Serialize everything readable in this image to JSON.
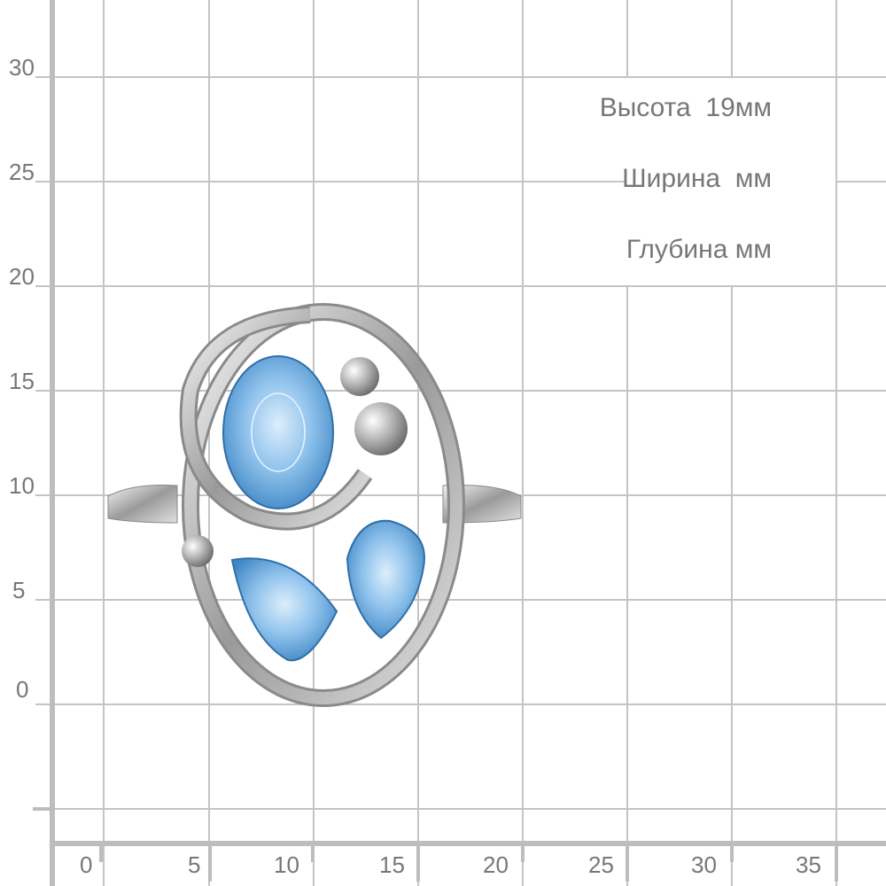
{
  "y_axis": {
    "ticks": [
      "30",
      "25",
      "20",
      "15",
      "10",
      "5",
      "0"
    ]
  },
  "x_axis": {
    "ticks": [
      "0",
      "5",
      "10",
      "15",
      "20",
      "25",
      "30",
      "35"
    ]
  },
  "dimensions": {
    "height": "Высота  19мм",
    "width": "Ширина  мм",
    "depth": "Глубина мм"
  },
  "colors": {
    "grid": "#bdbdbd",
    "label": "#777777",
    "gem": "#6fa8dc",
    "metal": "#c8c8c8"
  }
}
